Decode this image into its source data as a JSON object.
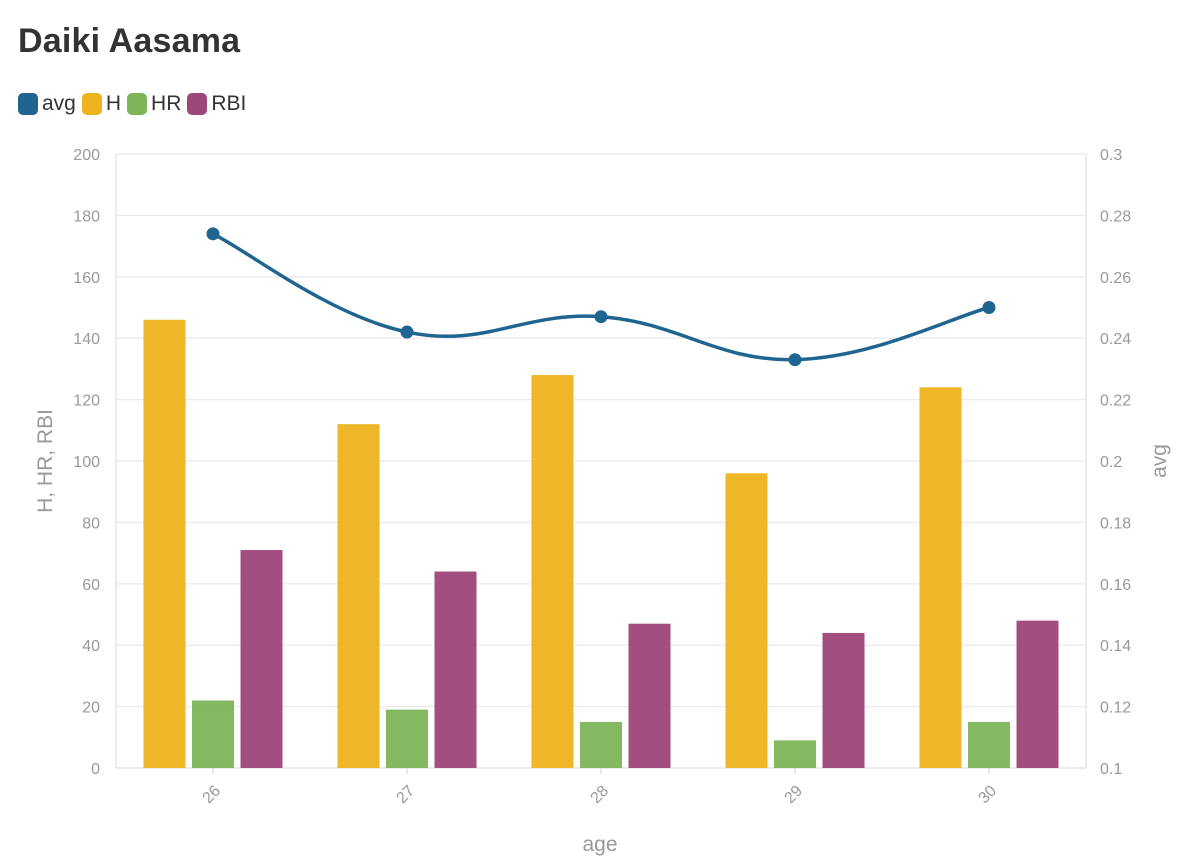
{
  "chart_data": {
    "type": "bar",
    "title": "Daiki Aasama",
    "xlabel": "age",
    "ylabel_left": "H, HR, RBI",
    "ylabel_right": "avg",
    "categories": [
      "26",
      "27",
      "28",
      "29",
      "30"
    ],
    "y_left_range": [
      0,
      200
    ],
    "y_left_ticks": [
      "0",
      "20",
      "40",
      "60",
      "80",
      "100",
      "120",
      "140",
      "160",
      "180",
      "200"
    ],
    "y_right_range": [
      0.1,
      0.3
    ],
    "y_right_ticks": [
      "0.1",
      "0.12",
      "0.14",
      "0.16",
      "0.18",
      "0.2",
      "0.22",
      "0.24",
      "0.26",
      "0.28",
      "0.3"
    ],
    "legend_position": "top-left",
    "grid": true,
    "series": [
      {
        "name": "avg",
        "type": "line",
        "axis": "right",
        "color": "#1f6590",
        "values": [
          0.274,
          0.242,
          0.247,
          0.233,
          0.25
        ]
      },
      {
        "name": "H",
        "type": "bar",
        "axis": "left",
        "color": "#edb21c",
        "values": [
          146,
          112,
          128,
          96,
          124
        ]
      },
      {
        "name": "HR",
        "type": "bar",
        "axis": "left",
        "color": "#7db558",
        "values": [
          22,
          19,
          15,
          9,
          15
        ]
      },
      {
        "name": "RBI",
        "type": "bar",
        "axis": "left",
        "color": "#9d4679",
        "values": [
          71,
          64,
          47,
          44,
          48
        ]
      }
    ]
  }
}
